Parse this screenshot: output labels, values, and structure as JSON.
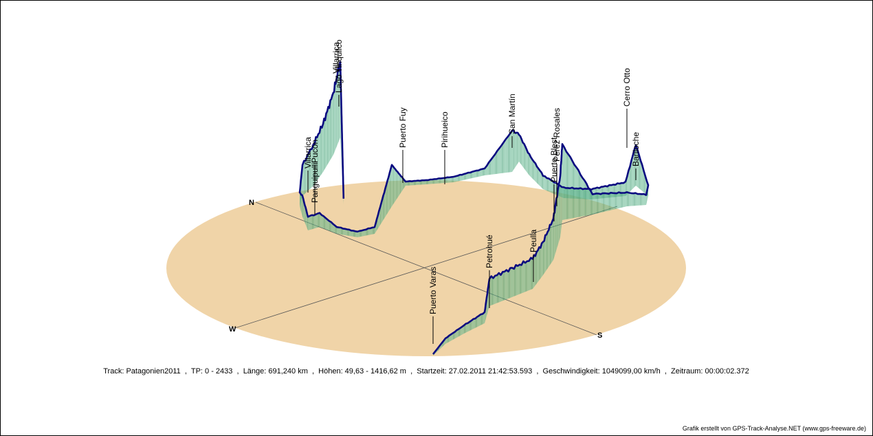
{
  "chart_data": {
    "type": "3d-elevation-profile",
    "compass": {
      "north": "N",
      "south": "S",
      "west": "W"
    },
    "waypoints": [
      {
        "name": "Puerto Varas",
        "t": 0.0,
        "elevation": 60
      },
      {
        "name": "Petrohué",
        "t": 0.1,
        "elevation": 200
      },
      {
        "name": "Peulla",
        "t": 0.18,
        "elevation": 250
      },
      {
        "name": "Puerto Blest",
        "t": 0.26,
        "elevation": 780
      },
      {
        "name": "Perez Rosales",
        "t": 0.27,
        "elevation": 880
      },
      {
        "name": "Cerro Otto",
        "t": 0.4,
        "elevation": 1300
      },
      {
        "name": "Bariloche",
        "t": 0.42,
        "elevation": 800
      },
      {
        "name": "San Martín",
        "t": 0.62,
        "elevation": 1100
      },
      {
        "name": "Pirihueico",
        "t": 0.75,
        "elevation": 650
      },
      {
        "name": "Puerto Fuy",
        "t": 0.8,
        "elevation": 650
      },
      {
        "name": "Villarrica",
        "t": 0.89,
        "elevation": 350
      },
      {
        "name": "Pucón",
        "t": 0.91,
        "elevation": 280
      },
      {
        "name": "Panguipulli",
        "t": 0.93,
        "elevation": 200
      },
      {
        "name": "Lago Tinquilco",
        "t": 0.96,
        "elevation": 1000
      },
      {
        "name": "Villarrica",
        "t": 0.97,
        "elevation": 1400
      }
    ],
    "elevation_range": [
      49.63,
      1416.62
    ]
  },
  "info": {
    "track": "Track: Patagonien2011",
    "tp": "TP: 0 - 2433",
    "length": "Länge: 691,240 km",
    "heights": "Höhen: 49,63 - 1416,62 m",
    "start": "Startzeit: 27.02.2011 21:42:53.593",
    "speed": "Geschwindigkeit: 1049099,00 km/h",
    "period": "Zeitraum: 00:00:02.372"
  },
  "credit": "Grafik erstellt von GPS-Track-Analyse.NET (www.gps-freeware.de)",
  "colors": {
    "ground": "#f0d4a8",
    "curtain_top": "#e6f4ee",
    "curtain_bottom": "#1a8a5a",
    "track": "#0a0a80"
  }
}
